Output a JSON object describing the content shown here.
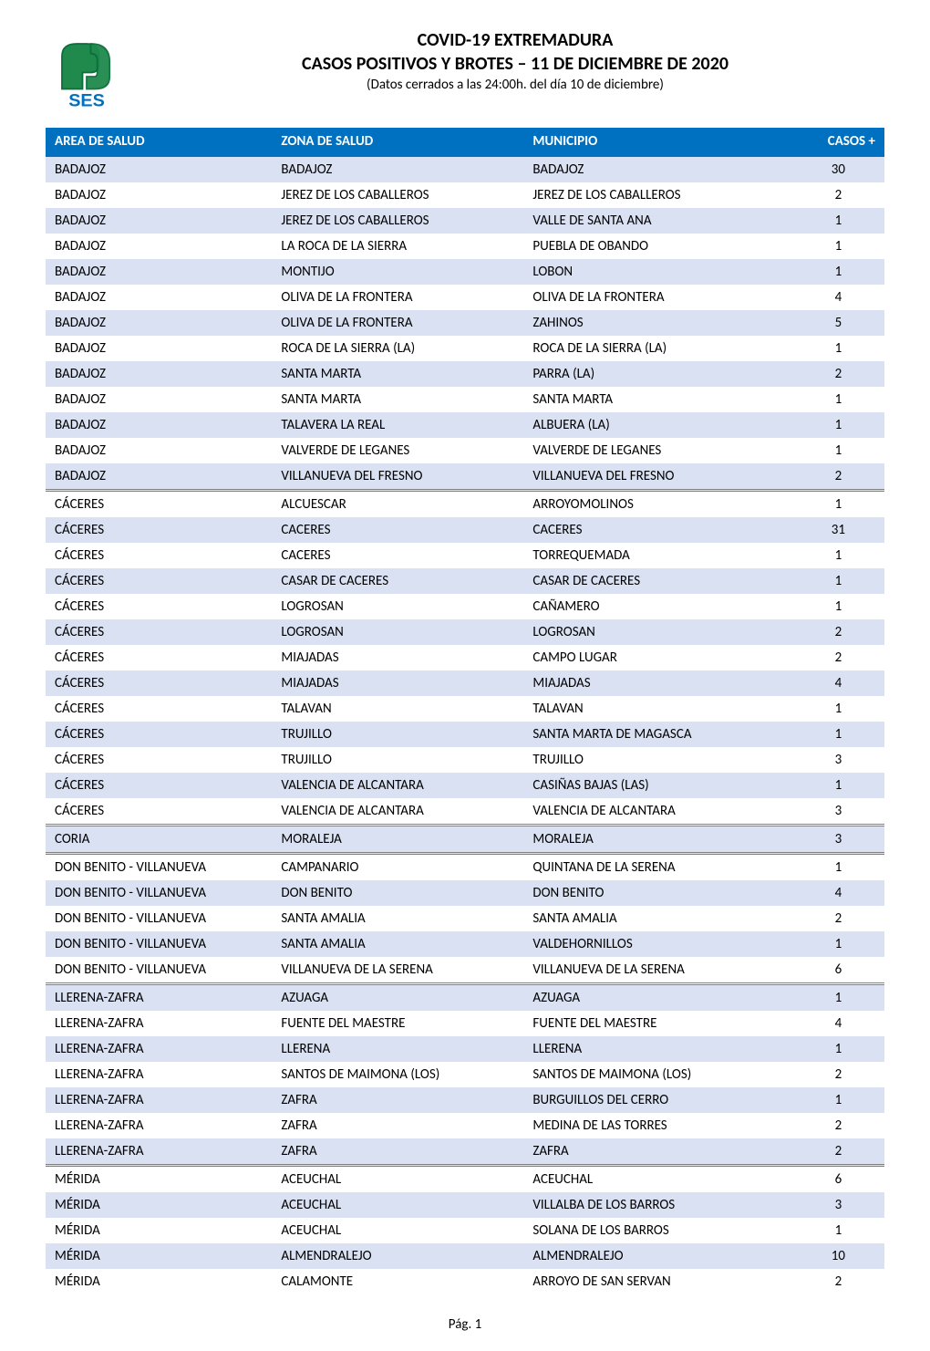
{
  "logo": {
    "name": "ses-logo",
    "bg_color": "#ffffff",
    "shape_fill": "#1f8a4c",
    "shape_outline": "#0b6e3b",
    "text": "SES",
    "text_color": "#0070c0"
  },
  "titles": {
    "main": "COVID-19 EXTREMADURA",
    "sub": "CASOS POSITIVOS Y BROTES – 11 DE DICIEMBRE DE 2020",
    "note": "(Datos cerrados a las 24:00h. del día 10 de diciembre)"
  },
  "table": {
    "columns": [
      {
        "key": "area",
        "label": "AREA DE SALUD"
      },
      {
        "key": "zona",
        "label": "ZONA DE SALUD"
      },
      {
        "key": "muni",
        "label": "MUNICIPIO"
      },
      {
        "key": "casos",
        "label": "CASOS +"
      }
    ],
    "header_bg": "#0070c0",
    "header_fg": "#ffffff",
    "row_shade_bg": "#d9e1f2",
    "group_divider_color": "#808080",
    "font_size": 15,
    "rows": [
      {
        "area": "BADAJOZ",
        "zona": "BADAJOZ",
        "muni": "BADAJOZ",
        "casos": 30,
        "shaded": true
      },
      {
        "area": "BADAJOZ",
        "zona": "JEREZ DE LOS CABALLEROS",
        "muni": "JEREZ DE LOS CABALLEROS",
        "casos": 2
      },
      {
        "area": "BADAJOZ",
        "zona": "JEREZ DE LOS CABALLEROS",
        "muni": "VALLE DE SANTA ANA",
        "casos": 1,
        "shaded": true
      },
      {
        "area": "BADAJOZ",
        "zona": "LA ROCA DE LA SIERRA",
        "muni": "PUEBLA DE OBANDO",
        "casos": 1
      },
      {
        "area": "BADAJOZ",
        "zona": "MONTIJO",
        "muni": "LOBON",
        "casos": 1,
        "shaded": true
      },
      {
        "area": "BADAJOZ",
        "zona": "OLIVA DE LA FRONTERA",
        "muni": "OLIVA DE LA FRONTERA",
        "casos": 4
      },
      {
        "area": "BADAJOZ",
        "zona": "OLIVA DE LA FRONTERA",
        "muni": "ZAHINOS",
        "casos": 5,
        "shaded": true
      },
      {
        "area": "BADAJOZ",
        "zona": "ROCA DE LA SIERRA (LA)",
        "muni": "ROCA DE LA SIERRA (LA)",
        "casos": 1
      },
      {
        "area": "BADAJOZ",
        "zona": "SANTA MARTA",
        "muni": "PARRA (LA)",
        "casos": 2,
        "shaded": true
      },
      {
        "area": "BADAJOZ",
        "zona": "SANTA MARTA",
        "muni": "SANTA MARTA",
        "casos": 1
      },
      {
        "area": "BADAJOZ",
        "zona": "TALAVERA LA REAL",
        "muni": "ALBUERA (LA)",
        "casos": 1,
        "shaded": true
      },
      {
        "area": "BADAJOZ",
        "zona": "VALVERDE DE LEGANES",
        "muni": "VALVERDE DE LEGANES",
        "casos": 1
      },
      {
        "area": "BADAJOZ",
        "zona": "VILLANUEVA DEL FRESNO",
        "muni": "VILLANUEVA DEL FRESNO",
        "casos": 2,
        "shaded": true,
        "group_end": true
      },
      {
        "area": "CÁCERES",
        "zona": "ALCUESCAR",
        "muni": "ARROYOMOLINOS",
        "casos": 1
      },
      {
        "area": "CÁCERES",
        "zona": "CACERES",
        "muni": "CACERES",
        "casos": 31,
        "shaded": true
      },
      {
        "area": "CÁCERES",
        "zona": "CACERES",
        "muni": "TORREQUEMADA",
        "casos": 1
      },
      {
        "area": "CÁCERES",
        "zona": "CASAR DE CACERES",
        "muni": "CASAR DE CACERES",
        "casos": 1,
        "shaded": true
      },
      {
        "area": "CÁCERES",
        "zona": "LOGROSAN",
        "muni": "CAÑAMERO",
        "casos": 1
      },
      {
        "area": "CÁCERES",
        "zona": "LOGROSAN",
        "muni": "LOGROSAN",
        "casos": 2,
        "shaded": true
      },
      {
        "area": "CÁCERES",
        "zona": "MIAJADAS",
        "muni": "CAMPO LUGAR",
        "casos": 2
      },
      {
        "area": "CÁCERES",
        "zona": "MIAJADAS",
        "muni": "MIAJADAS",
        "casos": 4,
        "shaded": true
      },
      {
        "area": "CÁCERES",
        "zona": "TALAVAN",
        "muni": "TALAVAN",
        "casos": 1
      },
      {
        "area": "CÁCERES",
        "zona": "TRUJILLO",
        "muni": "SANTA MARTA DE MAGASCA",
        "casos": 1,
        "shaded": true
      },
      {
        "area": "CÁCERES",
        "zona": "TRUJILLO",
        "muni": "TRUJILLO",
        "casos": 3
      },
      {
        "area": "CÁCERES",
        "zona": "VALENCIA DE ALCANTARA",
        "muni": "CASIÑAS BAJAS (LAS)",
        "casos": 1,
        "shaded": true
      },
      {
        "area": "CÁCERES",
        "zona": "VALENCIA DE ALCANTARA",
        "muni": "VALENCIA DE ALCANTARA",
        "casos": 3,
        "group_end": true
      },
      {
        "area": "CORIA",
        "zona": "MORALEJA",
        "muni": "MORALEJA",
        "casos": 3,
        "shaded": true,
        "group_end": true
      },
      {
        "area": "DON BENITO - VILLANUEVA",
        "zona": "CAMPANARIO",
        "muni": "QUINTANA DE LA SERENA",
        "casos": 1
      },
      {
        "area": "DON BENITO - VILLANUEVA",
        "zona": "DON BENITO",
        "muni": "DON BENITO",
        "casos": 4,
        "shaded": true
      },
      {
        "area": "DON BENITO - VILLANUEVA",
        "zona": "SANTA AMALIA",
        "muni": "SANTA AMALIA",
        "casos": 2
      },
      {
        "area": "DON BENITO - VILLANUEVA",
        "zona": "SANTA AMALIA",
        "muni": "VALDEHORNILLOS",
        "casos": 1,
        "shaded": true
      },
      {
        "area": "DON BENITO - VILLANUEVA",
        "zona": "VILLANUEVA DE LA SERENA",
        "muni": "VILLANUEVA DE LA SERENA",
        "casos": 6,
        "group_end": true
      },
      {
        "area": "LLERENA-ZAFRA",
        "zona": "AZUAGA",
        "muni": "AZUAGA",
        "casos": 1,
        "shaded": true
      },
      {
        "area": "LLERENA-ZAFRA",
        "zona": "FUENTE DEL MAESTRE",
        "muni": "FUENTE DEL MAESTRE",
        "casos": 4
      },
      {
        "area": "LLERENA-ZAFRA",
        "zona": "LLERENA",
        "muni": "LLERENA",
        "casos": 1,
        "shaded": true
      },
      {
        "area": "LLERENA-ZAFRA",
        "zona": "SANTOS DE MAIMONA (LOS)",
        "muni": "SANTOS DE MAIMONA (LOS)",
        "casos": 2
      },
      {
        "area": "LLERENA-ZAFRA",
        "zona": "ZAFRA",
        "muni": "BURGUILLOS DEL CERRO",
        "casos": 1,
        "shaded": true
      },
      {
        "area": "LLERENA-ZAFRA",
        "zona": "ZAFRA",
        "muni": "MEDINA DE LAS TORRES",
        "casos": 2
      },
      {
        "area": "LLERENA-ZAFRA",
        "zona": "ZAFRA",
        "muni": "ZAFRA",
        "casos": 2,
        "shaded": true,
        "group_end": true
      },
      {
        "area": "MÉRIDA",
        "zona": "ACEUCHAL",
        "muni": "ACEUCHAL",
        "casos": 6
      },
      {
        "area": "MÉRIDA",
        "zona": "ACEUCHAL",
        "muni": "VILLALBA DE LOS BARROS",
        "casos": 3,
        "shaded": true
      },
      {
        "area": "MÉRIDA",
        "zona": "ACEUCHAL",
        "muni": "SOLANA DE LOS BARROS",
        "casos": 1
      },
      {
        "area": "MÉRIDA",
        "zona": "ALMENDRALEJO",
        "muni": "ALMENDRALEJO",
        "casos": 10,
        "shaded": true
      },
      {
        "area": "MÉRIDA",
        "zona": "CALAMONTE",
        "muni": "ARROYO DE SAN SERVAN",
        "casos": 2
      }
    ]
  },
  "footer": {
    "page_label": "Pág. 1"
  }
}
